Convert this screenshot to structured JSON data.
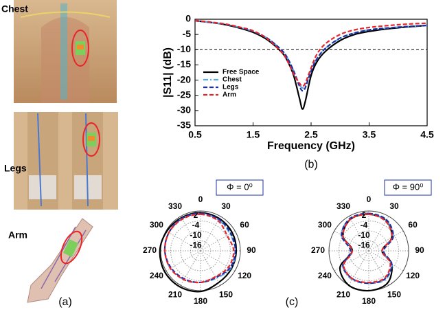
{
  "panel_a": {
    "labels": [
      "Chest",
      "Legs",
      "Arm"
    ],
    "caption": "(a)"
  },
  "panel_c": {
    "caption": "(c)"
  },
  "chart_data": [
    {
      "type": "line",
      "caption": "(b)",
      "xlabel": "Frequency (GHz)",
      "ylabel": "|S11| (dB)",
      "x": [
        0.5,
        0.75,
        1.0,
        1.25,
        1.5,
        1.75,
        2.0,
        2.1,
        2.2,
        2.3,
        2.35,
        2.4,
        2.5,
        2.6,
        2.75,
        3.0,
        3.25,
        3.5,
        3.75,
        4.0,
        4.25,
        4.5
      ],
      "xlim": [
        0.5,
        4.5
      ],
      "xticks": [
        0.5,
        1.5,
        2.5,
        3.5,
        4.5
      ],
      "ylim": [
        -35,
        0
      ],
      "yticks": [
        -35,
        -30,
        -25,
        -20,
        -15,
        -10,
        -5,
        0
      ],
      "reference_line": -10,
      "legend": "lower left",
      "series": [
        {
          "name": "Free Space",
          "color": "#000000",
          "style": "solid",
          "values": [
            -0.5,
            -1,
            -1.7,
            -2.8,
            -4.3,
            -6.8,
            -11,
            -14,
            -18.5,
            -26,
            -29.5,
            -27,
            -18.5,
            -14,
            -10.5,
            -7,
            -5,
            -4,
            -3.3,
            -2.8,
            -2.4,
            -2
          ]
        },
        {
          "name": "Chest",
          "color": "#5aa9e6",
          "style": "dashdot",
          "values": [
            -0.5,
            -1,
            -1.6,
            -2.6,
            -4,
            -6.3,
            -10.3,
            -13,
            -17,
            -21.5,
            -22.5,
            -22,
            -17,
            -13,
            -9.5,
            -6.3,
            -4.5,
            -3.5,
            -3,
            -2.6,
            -2.3,
            -2
          ]
        },
        {
          "name": "Legs",
          "color": "#1f2fa0",
          "style": "dash",
          "values": [
            -0.5,
            -1,
            -1.6,
            -2.6,
            -4,
            -6.3,
            -10.3,
            -13,
            -17,
            -22,
            -23.5,
            -22.5,
            -17,
            -13,
            -9.5,
            -6.2,
            -4.5,
            -3.5,
            -3,
            -2.6,
            -2.3,
            -2
          ]
        },
        {
          "name": "Arm",
          "color": "#e8262a",
          "style": "dash",
          "values": [
            -0.4,
            -0.9,
            -1.5,
            -2.5,
            -3.8,
            -6.5,
            -11,
            -14,
            -18,
            -21,
            -22,
            -21,
            -16,
            -11.5,
            -8,
            -5,
            -3.5,
            -2.7,
            -2.2,
            -1.8,
            -1.5,
            -1.3
          ]
        }
      ]
    },
    {
      "type": "polar",
      "title": "Φ = 0⁰",
      "theta": [
        0,
        30,
        60,
        90,
        120,
        150,
        180,
        210,
        240,
        270,
        300,
        330
      ],
      "thetaticks": [
        0,
        30,
        60,
        90,
        120,
        150,
        180,
        210,
        240,
        270,
        300,
        330
      ],
      "rlim": [
        -22,
        2
      ],
      "rticks": [
        2,
        -4,
        -10,
        -16
      ],
      "series": [
        {
          "color": "#000000",
          "style": "solid",
          "values": [
            1,
            0.5,
            0,
            -0.5,
            -0.5,
            0,
            2.5,
            3,
            3,
            2.5,
            1.5,
            1
          ]
        },
        {
          "color": "#5aa9e6",
          "style": "dashdot",
          "values": [
            0.5,
            -0.5,
            -1.5,
            -1,
            -1,
            -3,
            -3,
            -2,
            -1,
            -0.5,
            0,
            0.5
          ]
        },
        {
          "color": "#1f2fa0",
          "style": "dash",
          "values": [
            0.5,
            0,
            -1,
            -1,
            -1.5,
            -3.5,
            -3,
            -2.5,
            -1.5,
            -0.5,
            0,
            0.5
          ]
        },
        {
          "color": "#e8262a",
          "style": "dash",
          "values": [
            0,
            -1,
            -3.5,
            -2,
            -2.5,
            -4,
            -3,
            -2,
            -1,
            -0.5,
            0,
            0
          ]
        }
      ]
    },
    {
      "type": "polar",
      "title": "Φ = 90⁰",
      "theta": [
        0,
        30,
        60,
        90,
        120,
        150,
        180,
        210,
        240,
        270,
        300,
        330
      ],
      "thetaticks": [
        0,
        30,
        60,
        90,
        120,
        150,
        180,
        210,
        240,
        270,
        300,
        330
      ],
      "rlim": [
        -22,
        2
      ],
      "rticks": [
        2,
        -4,
        -10,
        -16
      ],
      "series": [
        {
          "color": "#000000",
          "style": "solid",
          "values": [
            0,
            -1,
            -6,
            -14,
            -6,
            0.5,
            2,
            2,
            -2,
            -12,
            -4,
            0
          ]
        },
        {
          "color": "#5aa9e6",
          "style": "dashdot",
          "values": [
            0,
            -1,
            -5,
            -14,
            -6,
            -2,
            -2.5,
            -2,
            -4,
            -12,
            -3,
            0.5
          ]
        },
        {
          "color": "#1f2fa0",
          "style": "dash",
          "values": [
            0.5,
            -0.5,
            -5,
            -13,
            -6,
            -2.5,
            -2.5,
            -2.5,
            -4,
            -11,
            -3,
            0.5
          ]
        },
        {
          "color": "#e8262a",
          "style": "dash",
          "values": [
            0,
            -1.5,
            -6,
            -14,
            -7,
            -3,
            -3,
            -2.5,
            -4.5,
            -12,
            -4,
            0
          ]
        }
      ]
    }
  ]
}
